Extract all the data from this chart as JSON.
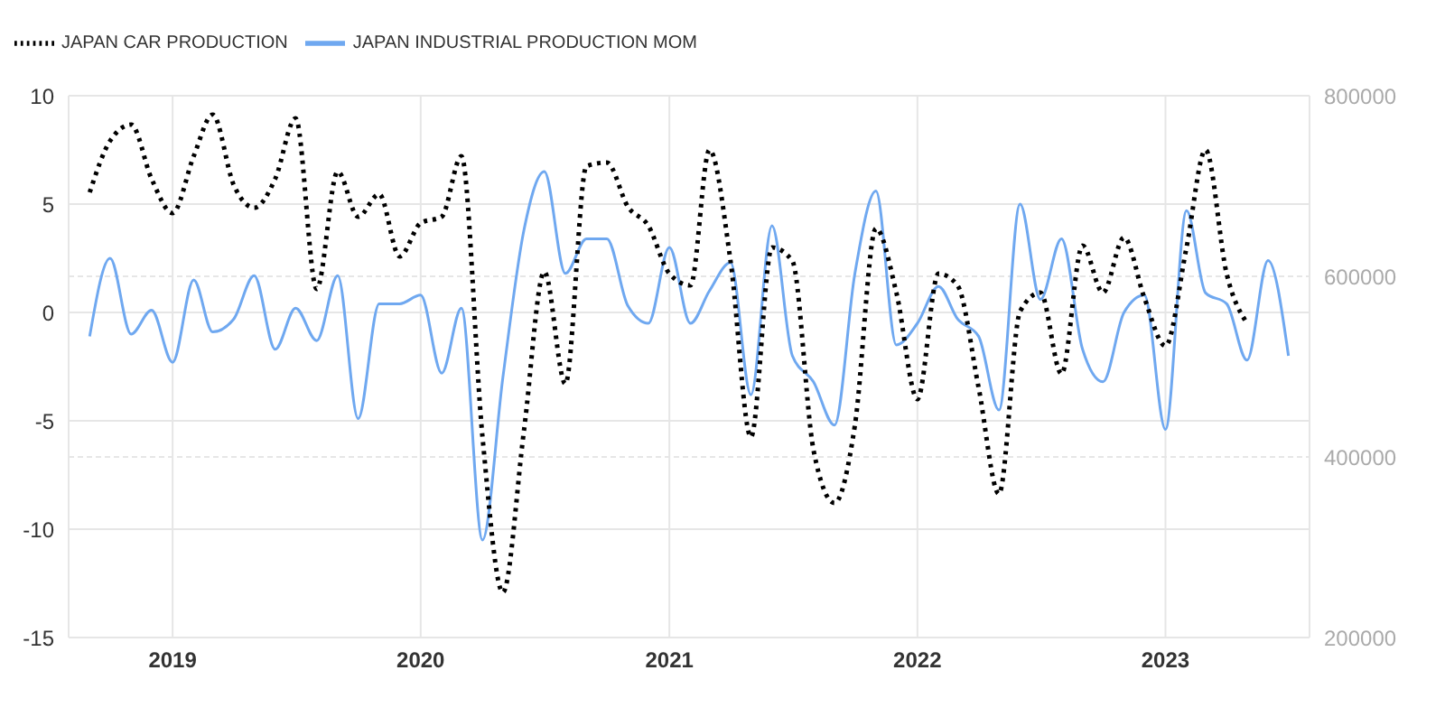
{
  "chart_data": {
    "type": "line",
    "x": [
      "2018-09",
      "2018-10",
      "2018-11",
      "2018-12",
      "2019-01",
      "2019-02",
      "2019-03",
      "2019-04",
      "2019-05",
      "2019-06",
      "2019-07",
      "2019-08",
      "2019-09",
      "2019-10",
      "2019-11",
      "2019-12",
      "2020-01",
      "2020-02",
      "2020-03",
      "2020-04",
      "2020-05",
      "2020-06",
      "2020-07",
      "2020-08",
      "2020-09",
      "2020-10",
      "2020-11",
      "2020-12",
      "2021-01",
      "2021-02",
      "2021-03",
      "2021-04",
      "2021-05",
      "2021-06",
      "2021-07",
      "2021-08",
      "2021-09",
      "2021-10",
      "2021-11",
      "2021-12",
      "2022-01",
      "2022-02",
      "2022-03",
      "2022-04",
      "2022-05",
      "2022-06",
      "2022-07",
      "2022-08",
      "2022-09",
      "2022-10",
      "2022-11",
      "2022-12",
      "2023-01",
      "2023-02",
      "2023-03",
      "2023-04",
      "2023-05",
      "2023-06",
      "2023-07"
    ],
    "series": [
      {
        "name": "JAPAN INDUSTRIAL PRODUCTION MOM",
        "color": "#6fa8f0",
        "line_style": "solid",
        "values": [
          -1.1,
          2.5,
          -1.0,
          0.1,
          -2.3,
          1.5,
          -0.9,
          -0.3,
          1.7,
          -1.7,
          0.2,
          -1.3,
          1.7,
          -4.9,
          0.4,
          0.4,
          0.8,
          -2.8,
          0.2,
          -10.5,
          -3.0,
          3.8,
          6.5,
          1.8,
          3.4,
          3.4,
          0.3,
          -0.5,
          3.0,
          -0.5,
          1.0,
          2.3,
          -3.8,
          4.0,
          -2.0,
          -3.2,
          -5.2,
          1.8,
          5.6,
          -1.5,
          -0.5,
          1.2,
          -0.3,
          -1.1,
          -4.5,
          5.0,
          0.6,
          3.4,
          -1.7,
          -3.2,
          0.0,
          0.8,
          -5.4,
          4.7,
          0.9,
          0.4,
          -2.2,
          2.4,
          -2.0
        ]
      },
      {
        "name": "JAPAN CAR PRODUCTION",
        "color": "#000000",
        "line_style": "dotted",
        "axis": "y2",
        "values": [
          693000,
          750000,
          768000,
          708000,
          670000,
          733000,
          779000,
          701000,
          676000,
          708000,
          775000,
          586000,
          716000,
          666000,
          691000,
          622000,
          659000,
          666000,
          733000,
          422000,
          250000,
          429000,
          605000,
          481000,
          722000,
          726000,
          677000,
          656000,
          603000,
          590000,
          740000,
          617000,
          422000,
          632000,
          617000,
          408000,
          349000,
          435000,
          653000,
          582000,
          464000,
          603000,
          590000,
          477000,
          359000,
          561000,
          582000,
          492000,
          634000,
          582000,
          643000,
          576000,
          523000,
          632000,
          740000,
          603000,
          548000,
          null,
          null
        ]
      }
    ],
    "xlim": [
      "2018-08",
      "2023-08"
    ],
    "xticks": [
      {
        "value": "2019",
        "label": "2019"
      },
      {
        "value": "2020",
        "label": "2020"
      },
      {
        "value": "2021",
        "label": "2021"
      },
      {
        "value": "2022",
        "label": "2022"
      },
      {
        "value": "2023",
        "label": "2023"
      }
    ],
    "ylim": [
      -15,
      10
    ],
    "yticks": [
      -15,
      -10,
      -5,
      0,
      5,
      10
    ],
    "y2lim": [
      200000,
      800000
    ],
    "y2ticks": [
      200000,
      400000,
      600000,
      800000
    ],
    "grid": true,
    "legend": "top left",
    "marker": "none"
  }
}
